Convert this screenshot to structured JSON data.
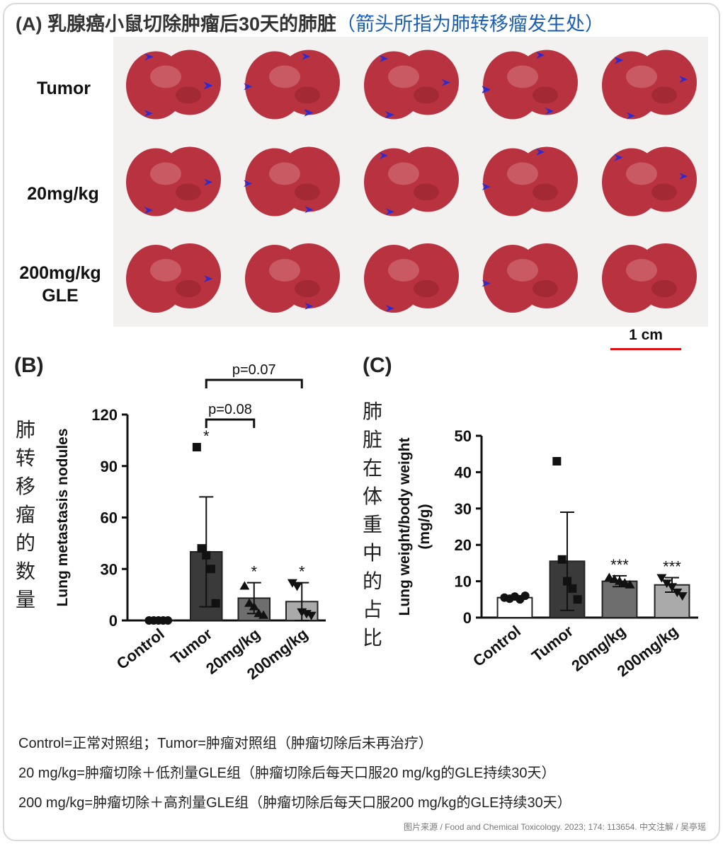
{
  "title": {
    "main": "(A) 乳腺癌小鼠切除肿瘤后30天的肺脏",
    "sub": "（箭头所指为肺转移瘤发生处）"
  },
  "photo_rows": [
    "Tumor",
    "20mg/kg",
    "200mg/kg GLE"
  ],
  "scale_bar": "1 cm",
  "colors": {
    "arrow": "#2b2bd6",
    "lung": "#b8323f",
    "scale_bar": "#dd1111",
    "sub_title": "#1a5fb4"
  },
  "panel_b": {
    "label": "(B)",
    "cn_ylabel": "肺转移瘤的数量"
  },
  "panel_c": {
    "label": "(C)",
    "cn_ylabel": "肺脏在体重中的占比"
  },
  "chart_data": [
    {
      "type": "bar",
      "ylabel": "Lung metastasis nodules",
      "categories": [
        "Control",
        "Tumor",
        "20mg/kg",
        "200mg/kg"
      ],
      "values": [
        0,
        40,
        13,
        11
      ],
      "errors": [
        0,
        32,
        9,
        11
      ],
      "fills": [
        "#ffffff",
        "#3a3a3a",
        "#6e6e6e",
        "#aaaaaa"
      ],
      "markers": [
        "circle",
        "square",
        "triangle",
        "triangle-down"
      ],
      "points": [
        [
          0,
          0,
          0,
          0,
          0
        ],
        [
          101,
          42,
          38,
          30,
          10
        ],
        [
          20,
          10,
          8,
          4,
          3
        ],
        [
          22,
          20,
          5,
          4,
          3
        ]
      ],
      "significance": [
        "",
        "*",
        "*",
        "*"
      ],
      "ylim": [
        0,
        120
      ],
      "yticks": [
        0,
        30,
        60,
        90,
        120
      ],
      "brackets": [
        {
          "from": "Tumor",
          "to": "20mg/kg",
          "label": "p=0.08"
        },
        {
          "from": "Tumor",
          "to": "200mg/kg",
          "label": "p=0.07"
        }
      ]
    },
    {
      "type": "bar",
      "ylabel": "Lung weight/body weight (mg/g)",
      "categories": [
        "Control",
        "Tumor",
        "20mg/kg",
        "200mg/kg"
      ],
      "values": [
        5.5,
        15.5,
        10,
        9
      ],
      "errors": [
        0.5,
        13.5,
        1.5,
        2
      ],
      "fills": [
        "#ffffff",
        "#3a3a3a",
        "#6e6e6e",
        "#aaaaaa"
      ],
      "markers": [
        "circle",
        "square",
        "triangle",
        "triangle-down"
      ],
      "points": [
        [
          5.5,
          5.2,
          5.8,
          5.0,
          6.0
        ],
        [
          43,
          16,
          10,
          8,
          5
        ],
        [
          11,
          10.5,
          10,
          9.5,
          9
        ],
        [
          11,
          9.5,
          8.5,
          7,
          6
        ]
      ],
      "significance": [
        "",
        "",
        "***",
        "***"
      ],
      "ylim": [
        0,
        50
      ],
      "yticks": [
        0,
        10,
        20,
        30,
        40,
        50
      ]
    }
  ],
  "notes": [
    "Control=正常对照组；Tumor=肿瘤对照组（肿瘤切除后未再治疗）",
    "20 mg/kg=肿瘤切除＋低剂量GLE组（肿瘤切除后每天口服20 mg/kg的GLE持续30天）",
    "200 mg/kg=肿瘤切除＋高剂量GLE组（肿瘤切除后每天口服200 mg/kg的GLE持续30天）"
  ],
  "source": "图片来源 / Food and Chemical Toxicology. 2023; 174: 113654.   中文注解 / 吴亭瑶"
}
